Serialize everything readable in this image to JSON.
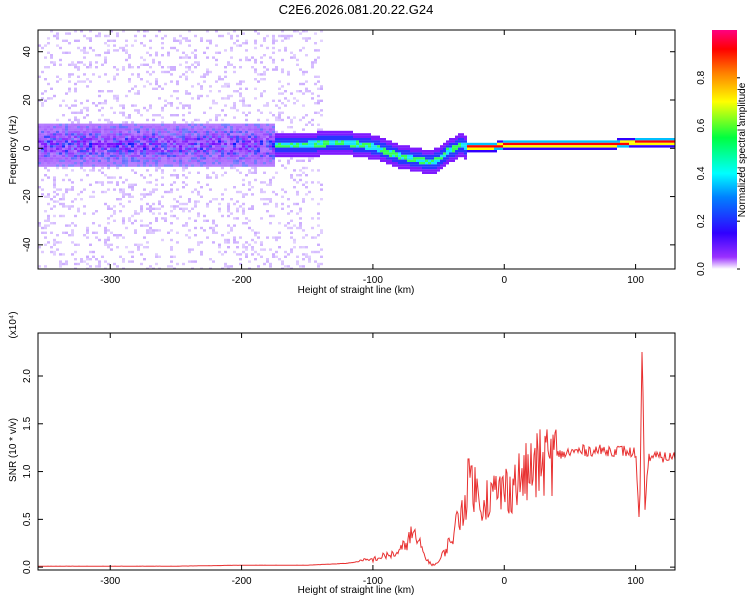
{
  "title": "C2E6.2026.081.20.22.G24",
  "chart_data": [
    {
      "type": "heatmap",
      "xlabel": "Height of straight line (km)",
      "ylabel": "Frequency (Hz)",
      "xlim": [
        -355,
        130
      ],
      "ylim": [
        -50,
        49
      ],
      "xticks": [
        -300,
        -200,
        -100,
        0,
        100
      ],
      "xtick_labels": [
        "-300",
        "-200",
        "-100",
        "0",
        "100"
      ],
      "yticks": [
        -40,
        -20,
        0,
        20,
        40
      ],
      "ytick_labels": [
        "-40",
        "-20",
        "0",
        "20",
        "40"
      ],
      "colorbar": {
        "label": "Normalized spectral amplitude",
        "range": [
          0,
          1
        ],
        "ticks": [
          0.0,
          0.2,
          0.4,
          0.6,
          0.8
        ],
        "tick_labels": [
          "0.0",
          "0.2",
          "0.4",
          "0.6",
          "0.8"
        ],
        "colormap": [
          "#ffffff",
          "#7a00ff",
          "#0000ff",
          "#00ffff",
          "#00ff00",
          "#ffff00",
          "#ff8000",
          "#ff0000",
          "#ff00c0"
        ]
      },
      "ridge": {
        "x": [
          -175,
          -150,
          -125,
          -100,
          -90,
          -80,
          -70,
          -60,
          -55,
          -50,
          -45,
          -40,
          -35,
          -30,
          -20,
          -10,
          0,
          20,
          40,
          60,
          80,
          100,
          130
        ],
        "y": [
          2,
          2,
          3,
          1,
          -1,
          -3,
          -4,
          -5,
          -5,
          -4,
          -1,
          0,
          2,
          1,
          1,
          1,
          2,
          2,
          2,
          2,
          2,
          3,
          3
        ]
      }
    },
    {
      "type": "line",
      "xlabel": "Height of straight line (km)",
      "ylabel": "SNR (10 * v/v)",
      "ylabel_scale": "(x10⁴)",
      "xlim": [
        -355,
        130
      ],
      "ylim": [
        -0.03,
        2.45
      ],
      "xticks": [
        -300,
        -200,
        -100,
        0,
        100
      ],
      "xtick_labels": [
        "-300",
        "-200",
        "-100",
        "0",
        "100"
      ],
      "yticks": [
        0.0,
        0.5,
        1.0,
        1.5,
        2.0
      ],
      "ytick_labels": [
        "0.0",
        "0.5",
        "1.0",
        "1.5",
        "2.0"
      ],
      "series": [
        {
          "color": "#e83030",
          "x": [
            -355,
            -300,
            -250,
            -200,
            -150,
            -120,
            -100,
            -90,
            -80,
            -75,
            -70,
            -65,
            -60,
            -55,
            -50,
            -40,
            -30,
            -25,
            -20,
            -10,
            0,
            10,
            20,
            30,
            40,
            50,
            60,
            70,
            80,
            90,
            95,
            100,
            103,
            105,
            107,
            110,
            120,
            130
          ],
          "y": [
            0.01,
            0.01,
            0.01,
            0.02,
            0.02,
            0.04,
            0.08,
            0.12,
            0.15,
            0.25,
            0.35,
            0.25,
            0.1,
            0.02,
            0.05,
            0.3,
            0.7,
            1.0,
            0.7,
            0.75,
            0.8,
            0.9,
            1.0,
            1.1,
            1.17,
            1.2,
            1.22,
            1.22,
            1.22,
            1.22,
            1.2,
            1.2,
            0.4,
            2.3,
            0.6,
            1.16,
            1.15,
            1.15
          ]
        }
      ]
    }
  ]
}
